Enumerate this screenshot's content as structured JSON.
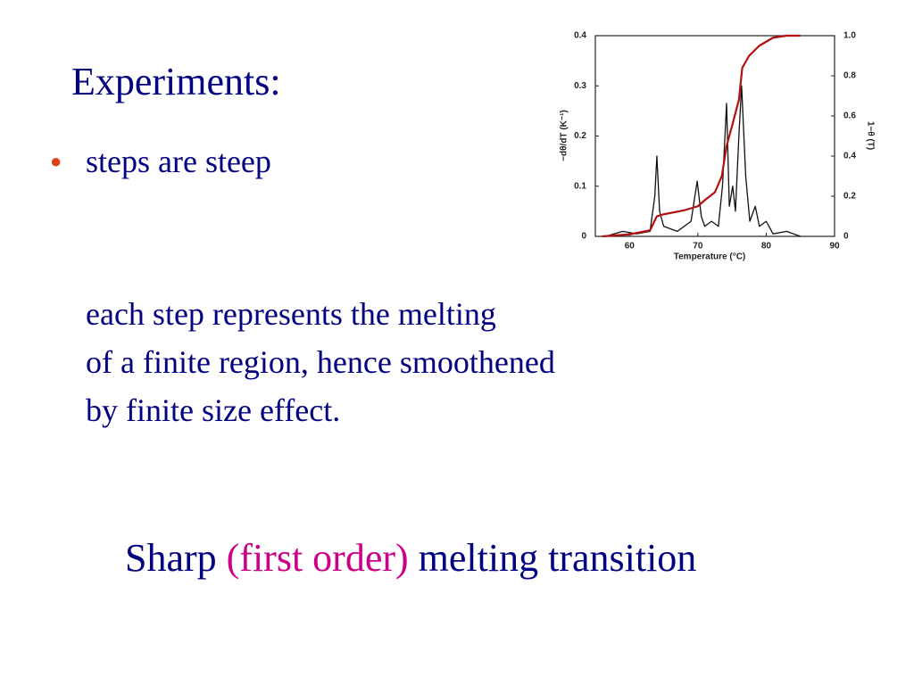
{
  "title": "Experiments:",
  "bullets": [
    "steps are steep"
  ],
  "paragraph": [
    "each step represents the melting",
    "of a finite region, hence smoothened",
    "by finite size effect."
  ],
  "conclusion": [
    "Sharp",
    "(first order)",
    "melting transition"
  ],
  "chart_data": {
    "type": "line",
    "xlabel": "Temperature (°C)",
    "ylabel": "−dθ/dT (K⁻¹)",
    "y2label": "1−θ (T)",
    "xlim": [
      55,
      90
    ],
    "xticks": [
      60,
      70,
      80,
      90
    ],
    "ylim": [
      0,
      0.4
    ],
    "yticks": [
      0,
      0.1,
      0.2,
      0.3,
      0.4
    ],
    "y2lim": [
      0,
      1
    ],
    "y2ticks": [
      0,
      0.2,
      0.4,
      0.6,
      0.8,
      {
        "value": 1,
        "label": "1.0"
      }
    ],
    "grid": false,
    "series": [
      {
        "color": "#111111",
        "x": [
          57,
          59,
          61,
          63,
          63.7,
          64,
          64.4,
          65,
          67,
          69,
          69.9,
          70.5,
          71,
          72,
          73,
          73.6,
          74.2,
          74.6,
          75.1,
          75.5,
          76,
          76.4,
          77,
          77.6,
          78.4,
          79,
          80,
          81,
          83,
          85
        ],
        "values": [
          0.002,
          0.01,
          0.005,
          0.01,
          0.08,
          0.16,
          0.05,
          0.02,
          0.01,
          0.03,
          0.11,
          0.04,
          0.02,
          0.03,
          0.02,
          0.1,
          0.265,
          0.06,
          0.1,
          0.05,
          0.2,
          0.3,
          0.12,
          0.03,
          0.06,
          0.02,
          0.03,
          0.005,
          0.01,
          0
        ]
      },
      {
        "color": "#b01010",
        "axis": "y2",
        "x": [
          56,
          60,
          63,
          64,
          65,
          68,
          70,
          71,
          72.5,
          73.5,
          74.2,
          75,
          76,
          76.5,
          77.5,
          79,
          81,
          83,
          85
        ],
        "values": [
          0,
          0.01,
          0.03,
          0.1,
          0.11,
          0.13,
          0.15,
          0.18,
          0.22,
          0.3,
          0.45,
          0.55,
          0.68,
          0.84,
          0.9,
          0.95,
          0.99,
          1,
          1
        ]
      }
    ]
  }
}
